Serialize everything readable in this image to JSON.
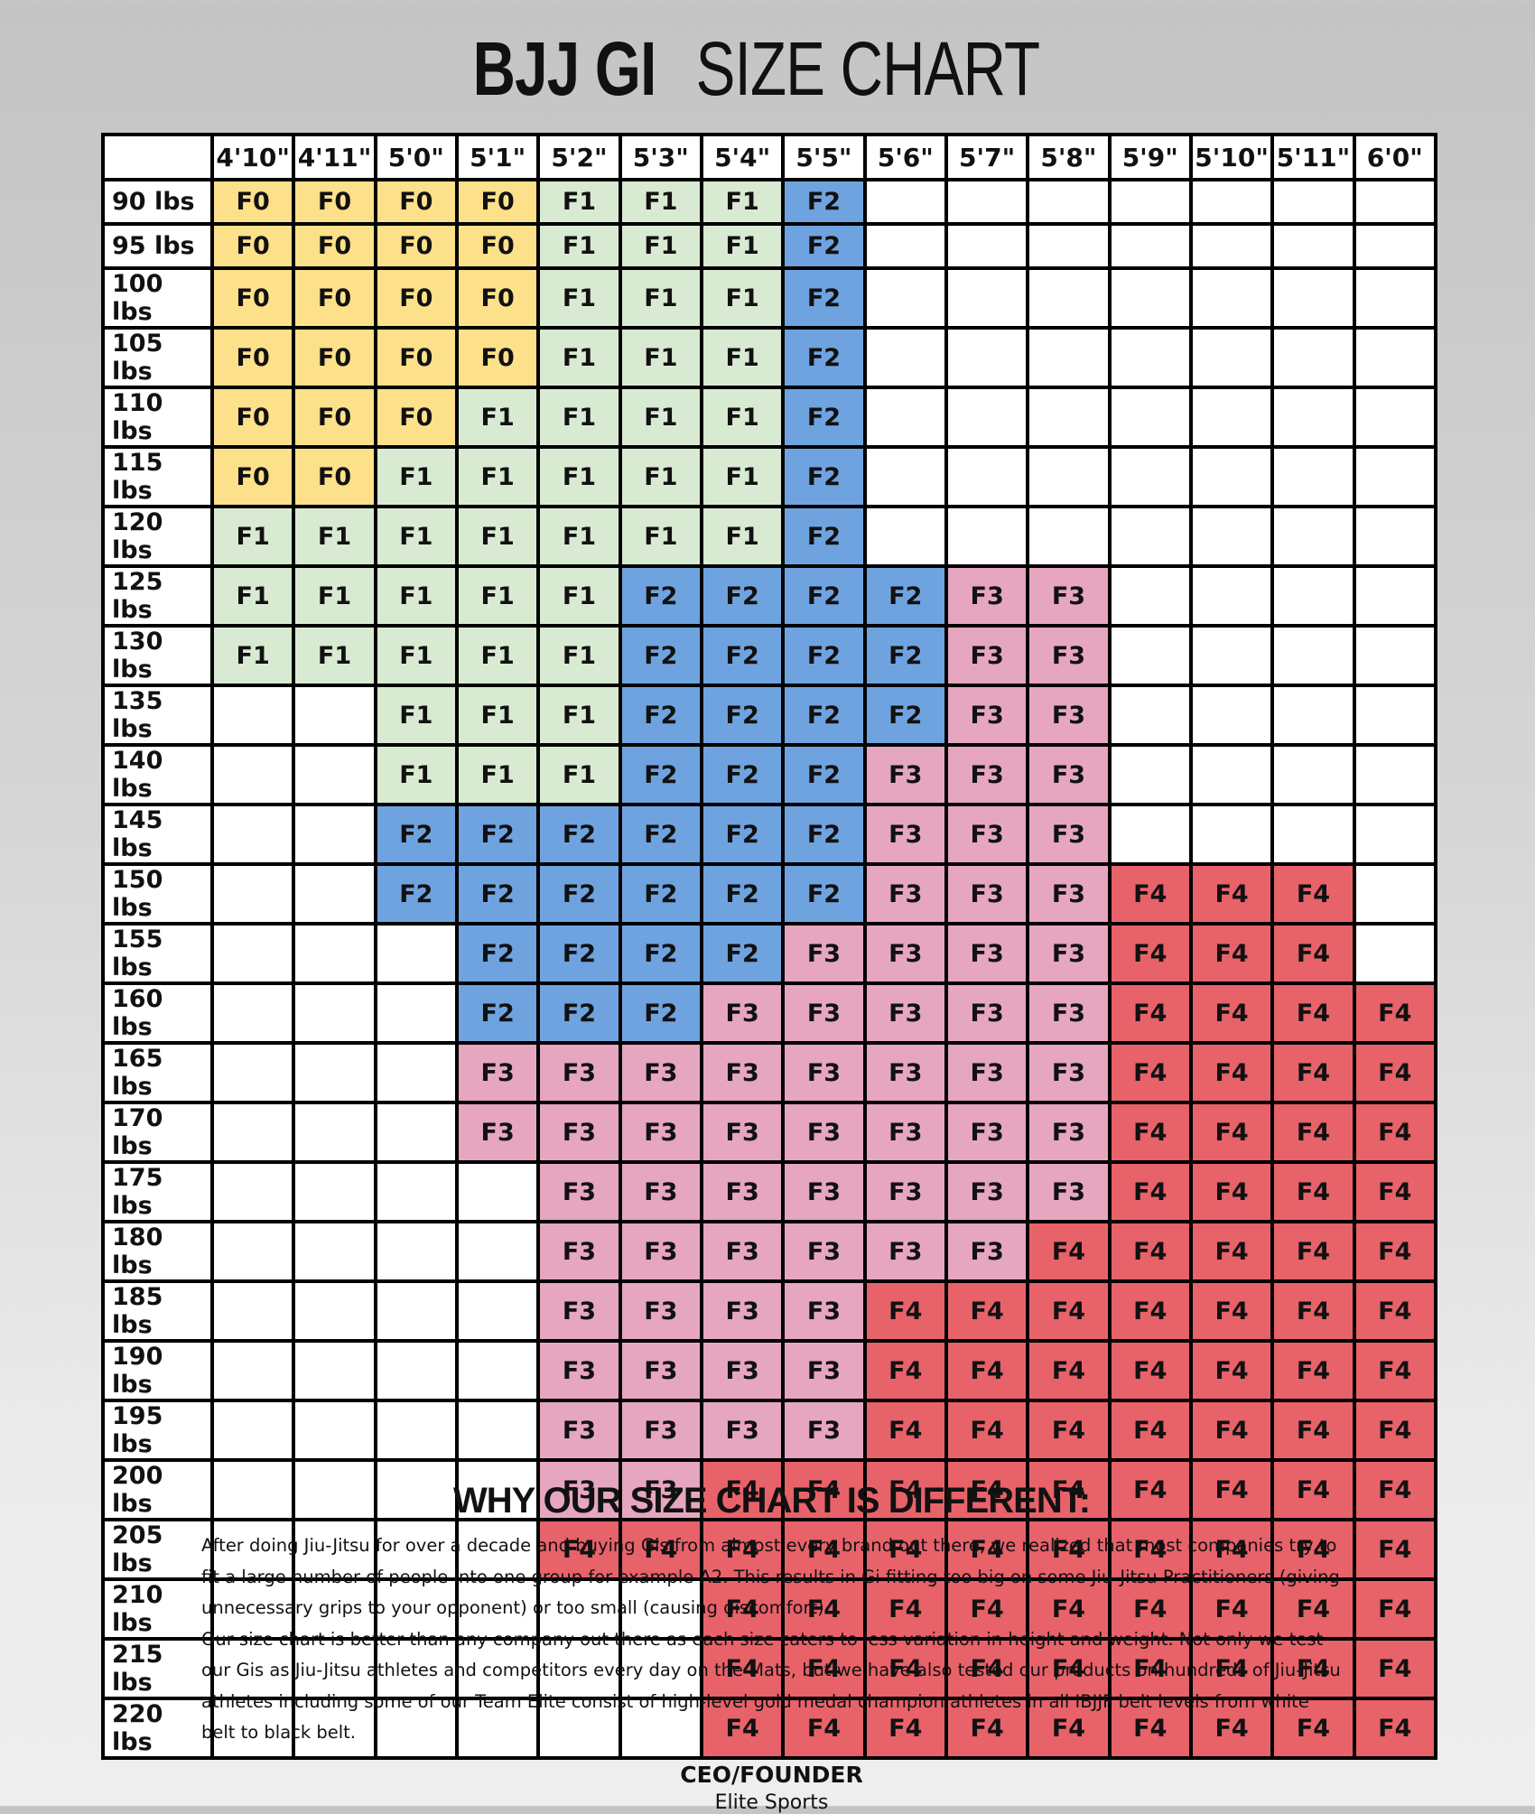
{
  "title": {
    "bold": "BJJ GI",
    "rest": "SIZE CHART"
  },
  "colors": {
    "F0": "#fde08a",
    "F1": "#d9ead3",
    "F2": "#6fa3e0",
    "F3": "#e6a6c0",
    "F4": "#e8626a"
  },
  "table": {
    "columns": [
      "4'10\"",
      "4'11\"",
      "5'0\"",
      "5'1\"",
      "5'2\"",
      "5'3\"",
      "5'4\"",
      "5'5\"",
      "5'6\"",
      "5'7\"",
      "5'8\"",
      "5'9\"",
      "5'10\"",
      "5'11\"",
      "6'0\""
    ],
    "rows": [
      {
        "label": "90 lbs",
        "cells": [
          "F0",
          "F0",
          "F0",
          "F0",
          "F1",
          "F1",
          "F1",
          "F2",
          null,
          null,
          null,
          null,
          null,
          null,
          null
        ]
      },
      {
        "label": "95 lbs",
        "cells": [
          "F0",
          "F0",
          "F0",
          "F0",
          "F1",
          "F1",
          "F1",
          "F2",
          null,
          null,
          null,
          null,
          null,
          null,
          null
        ]
      },
      {
        "label": "100 lbs",
        "cells": [
          "F0",
          "F0",
          "F0",
          "F0",
          "F1",
          "F1",
          "F1",
          "F2",
          null,
          null,
          null,
          null,
          null,
          null,
          null
        ]
      },
      {
        "label": "105 lbs",
        "cells": [
          "F0",
          "F0",
          "F0",
          "F0",
          "F1",
          "F1",
          "F1",
          "F2",
          null,
          null,
          null,
          null,
          null,
          null,
          null
        ]
      },
      {
        "label": "110 lbs",
        "cells": [
          "F0",
          "F0",
          "F0",
          "F1",
          "F1",
          "F1",
          "F1",
          "F2",
          null,
          null,
          null,
          null,
          null,
          null,
          null
        ]
      },
      {
        "label": "115 lbs",
        "cells": [
          "F0",
          "F0",
          "F1",
          "F1",
          "F1",
          "F1",
          "F1",
          "F2",
          null,
          null,
          null,
          null,
          null,
          null,
          null
        ]
      },
      {
        "label": "120 lbs",
        "cells": [
          "F1",
          "F1",
          "F1",
          "F1",
          "F1",
          "F1",
          "F1",
          "F2",
          null,
          null,
          null,
          null,
          null,
          null,
          null
        ]
      },
      {
        "label": "125 lbs",
        "cells": [
          "F1",
          "F1",
          "F1",
          "F1",
          "F1",
          "F2",
          "F2",
          "F2",
          "F2",
          "F3",
          "F3",
          null,
          null,
          null,
          null
        ]
      },
      {
        "label": "130 lbs",
        "cells": [
          "F1",
          "F1",
          "F1",
          "F1",
          "F1",
          "F2",
          "F2",
          "F2",
          "F2",
          "F3",
          "F3",
          null,
          null,
          null,
          null
        ]
      },
      {
        "label": "135 lbs",
        "cells": [
          null,
          null,
          "F1",
          "F1",
          "F1",
          "F2",
          "F2",
          "F2",
          "F2",
          "F3",
          "F3",
          null,
          null,
          null,
          null
        ]
      },
      {
        "label": "140 lbs",
        "cells": [
          null,
          null,
          "F1",
          "F1",
          "F1",
          "F2",
          "F2",
          "F2",
          "F3",
          "F3",
          "F3",
          null,
          null,
          null,
          null
        ]
      },
      {
        "label": "145 lbs",
        "cells": [
          null,
          null,
          "F2",
          "F2",
          "F2",
          "F2",
          "F2",
          "F2",
          "F3",
          "F3",
          "F3",
          null,
          null,
          null,
          null
        ]
      },
      {
        "label": "150 lbs",
        "cells": [
          null,
          null,
          "F2",
          "F2",
          "F2",
          "F2",
          "F2",
          "F2",
          "F3",
          "F3",
          "F3",
          "F4",
          "F4",
          "F4",
          null
        ]
      },
      {
        "label": "155 lbs",
        "cells": [
          null,
          null,
          null,
          "F2",
          "F2",
          "F2",
          "F2",
          "F3",
          "F3",
          "F3",
          "F3",
          "F4",
          "F4",
          "F4",
          null
        ]
      },
      {
        "label": "160 lbs",
        "cells": [
          null,
          null,
          null,
          "F2",
          "F2",
          "F2",
          "F3",
          "F3",
          "F3",
          "F3",
          "F3",
          "F4",
          "F4",
          "F4",
          "F4"
        ]
      },
      {
        "label": "165 lbs",
        "cells": [
          null,
          null,
          null,
          "F3",
          "F3",
          "F3",
          "F3",
          "F3",
          "F3",
          "F3",
          "F3",
          "F4",
          "F4",
          "F4",
          "F4"
        ]
      },
      {
        "label": "170 lbs",
        "cells": [
          null,
          null,
          null,
          "F3",
          "F3",
          "F3",
          "F3",
          "F3",
          "F3",
          "F3",
          "F3",
          "F4",
          "F4",
          "F4",
          "F4"
        ]
      },
      {
        "label": "175 lbs",
        "cells": [
          null,
          null,
          null,
          null,
          "F3",
          "F3",
          "F3",
          "F3",
          "F3",
          "F3",
          "F3",
          "F4",
          "F4",
          "F4",
          "F4"
        ]
      },
      {
        "label": "180 lbs",
        "cells": [
          null,
          null,
          null,
          null,
          "F3",
          "F3",
          "F3",
          "F3",
          "F3",
          "F3",
          "F4",
          "F4",
          "F4",
          "F4",
          "F4"
        ]
      },
      {
        "label": "185 lbs",
        "cells": [
          null,
          null,
          null,
          null,
          "F3",
          "F3",
          "F3",
          "F3",
          "F4",
          "F4",
          "F4",
          "F4",
          "F4",
          "F4",
          "F4"
        ]
      },
      {
        "label": "190 lbs",
        "cells": [
          null,
          null,
          null,
          null,
          "F3",
          "F3",
          "F3",
          "F3",
          "F4",
          "F4",
          "F4",
          "F4",
          "F4",
          "F4",
          "F4"
        ]
      },
      {
        "label": "195 lbs",
        "cells": [
          null,
          null,
          null,
          null,
          "F3",
          "F3",
          "F3",
          "F3",
          "F4",
          "F4",
          "F4",
          "F4",
          "F4",
          "F4",
          "F4"
        ]
      },
      {
        "label": "200 lbs",
        "cells": [
          null,
          null,
          null,
          null,
          "F3",
          "F3",
          "F4",
          "F4",
          "F4",
          "F4",
          "F4",
          "F4",
          "F4",
          "F4",
          "F4"
        ]
      },
      {
        "label": "205 lbs",
        "cells": [
          null,
          null,
          null,
          null,
          "F4",
          "F4",
          "F4",
          "F4",
          "F4",
          "F4",
          "F4",
          "F4",
          "F4",
          "F4",
          "F4"
        ]
      },
      {
        "label": "210 lbs",
        "cells": [
          null,
          null,
          null,
          null,
          null,
          null,
          "F4",
          "F4",
          "F4",
          "F4",
          "F4",
          "F4",
          "F4",
          "F4",
          "F4"
        ]
      },
      {
        "label": "215 lbs",
        "cells": [
          null,
          null,
          null,
          null,
          null,
          null,
          "F4",
          "F4",
          "F4",
          "F4",
          "F4",
          "F4",
          "F4",
          "F4",
          "F4"
        ]
      },
      {
        "label": "220 lbs",
        "cells": [
          null,
          null,
          null,
          null,
          null,
          null,
          "F4",
          "F4",
          "F4",
          "F4",
          "F4",
          "F4",
          "F4",
          "F4",
          "F4"
        ]
      }
    ]
  },
  "section": {
    "heading": "WHY OUR SIZE CHART IS DIFFERENT:",
    "paragraphs": [
      "After doing Jiu-Jitsu for over a decade and buying Gis from almost every brand out there, we realized that most companies try to fit a large number of people into one group for example A2. This results in Gi fitting too big on some Jiu-Jitsu Practitioners (giving unnecessary grips to your opponent) or too small (causing discomfort).",
      "Our size chart is better than any company out there as each size caters to less variation in height and weight. Not only we test our Gis as Jiu-Jitsu athletes and competitors every day on the Mats, but we have also tested our products on hundreds of Jiu-Jitsu athletes including some of our Team Elite consist of high-level gold medal champion athletes in all IBJJF belt levels from white belt to black belt."
    ],
    "signature_role": "CEO/FOUNDER",
    "signature_company": "Elite Sports"
  }
}
